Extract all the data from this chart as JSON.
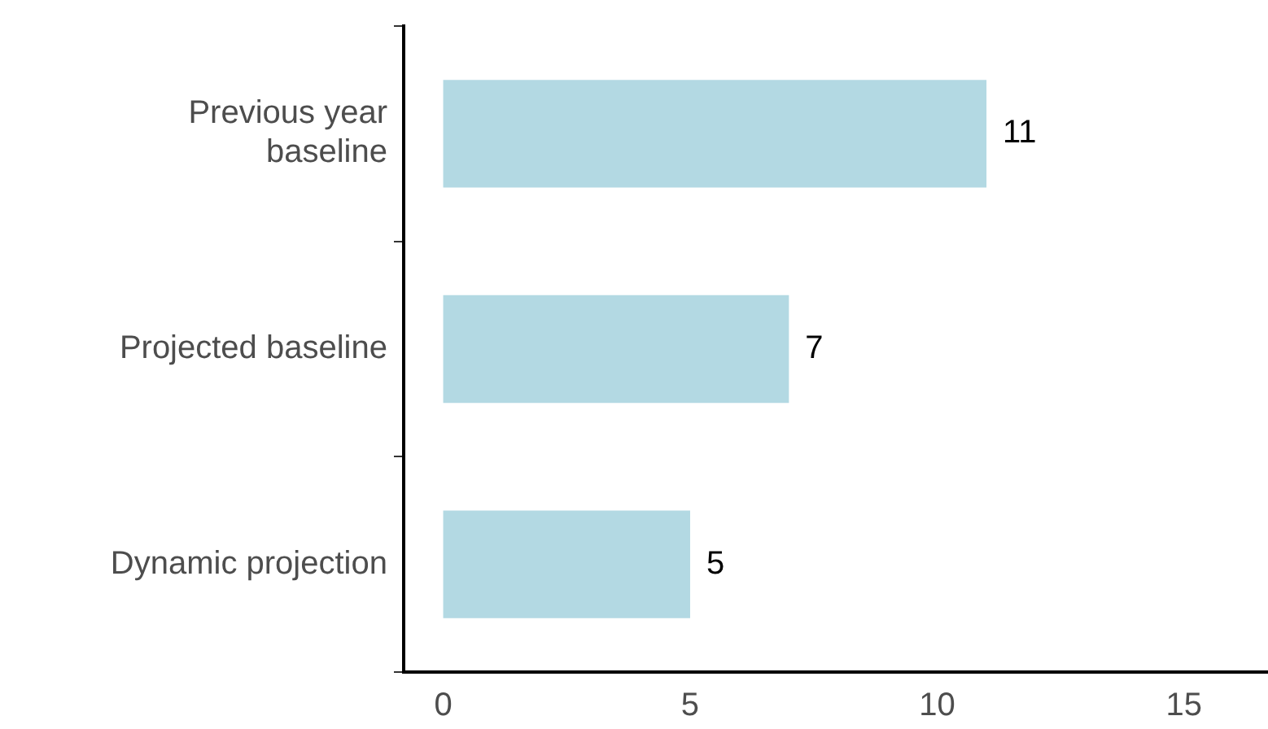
{
  "chart_data": {
    "type": "bar",
    "orientation": "horizontal",
    "categories": [
      "Previous year\nbaseline",
      "Projected baseline",
      "Dynamic projection"
    ],
    "values": [
      11,
      7,
      5
    ],
    "color": "#b3d9e3",
    "xlim": [
      -0.8,
      16.7
    ],
    "xticks": [
      0,
      5,
      10,
      15
    ],
    "data_labels": true,
    "legend": false,
    "grid": false
  }
}
